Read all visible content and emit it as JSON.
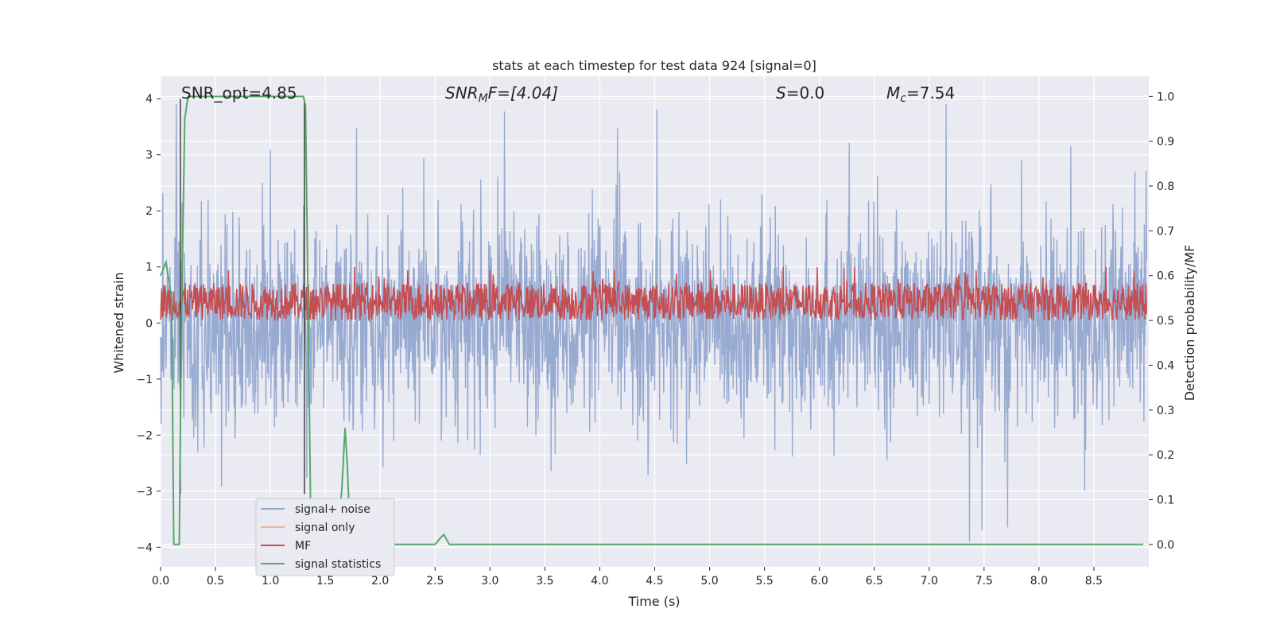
{
  "chart_data": {
    "type": "line",
    "title": "stats at each timestep for test data 924 [signal=0]",
    "xlabel": "Time (s)",
    "ylabel": "Whitened strain",
    "ylabel_right": "Detection probability/MF",
    "xlim": [
      0,
      9.0
    ],
    "ylim": [
      -4.35,
      4.4
    ],
    "ylim_right": [
      -0.05,
      1.045
    ],
    "x_ticks": [
      0.0,
      0.5,
      1.0,
      1.5,
      2.0,
      2.5,
      3.0,
      3.5,
      4.0,
      4.5,
      5.0,
      5.5,
      6.0,
      6.5,
      7.0,
      7.5,
      8.0,
      8.5
    ],
    "x_tick_labels": [
      "0.0",
      "0.5",
      "1.0",
      "1.5",
      "2.0",
      "2.5",
      "3.0",
      "3.5",
      "4.0",
      "4.5",
      "5.0",
      "5.5",
      "6.0",
      "6.5",
      "7.0",
      "7.5",
      "8.0",
      "8.5"
    ],
    "y_ticks": [
      -4,
      -3,
      -2,
      -1,
      0,
      1,
      2,
      3,
      4
    ],
    "y_tick_labels": [
      "−4",
      "−3",
      "−2",
      "−1",
      "0",
      "1",
      "2",
      "3",
      "4"
    ],
    "y_right_ticks": [
      0.0,
      0.1,
      0.2,
      0.3,
      0.4,
      0.5,
      0.6,
      0.7,
      0.8,
      0.9,
      1.0
    ],
    "y_right_tick_labels": [
      "0.0",
      "0.1",
      "0.2",
      "0.3",
      "0.4",
      "0.5",
      "0.6",
      "0.7",
      "0.8",
      "0.9",
      "1.0"
    ],
    "grid": true,
    "legend_position": "lower-left",
    "annotations": {
      "snr_opt": "SNR_opt=4.85",
      "snr_mf_prefix": "SNR",
      "snr_mf_sub": "M",
      "snr_mf_suffix": "F=[4.04]",
      "s_var": "S",
      "s_value": "=0.0",
      "mc_var": "M",
      "mc_sub": "c",
      "mc_value": "=7.54"
    },
    "vertical_lines": [
      0.18,
      1.31
    ],
    "series": [
      {
        "name": "signal+ noise",
        "axis": "left",
        "color": "#92a6cf",
        "amplitude_typical": 1.6,
        "amplitude_max": 3.9
      },
      {
        "name": "signal only",
        "axis": "left",
        "color": "#eeb39f"
      },
      {
        "name": "MF",
        "axis": "right",
        "color": "#c44e52",
        "band": [
          0.5,
          0.62
        ]
      },
      {
        "name": "signal statistics",
        "axis": "right",
        "color": "#55a868",
        "x": [
          0.0,
          0.05,
          0.1,
          0.12,
          0.17,
          0.19,
          0.22,
          0.25,
          1.3,
          1.32,
          1.35,
          1.37,
          1.6,
          1.65,
          1.68,
          1.7,
          1.73,
          1.78,
          2.5,
          2.55,
          2.58,
          2.63,
          8.95
        ],
        "values": [
          0.6,
          0.63,
          0.55,
          0.0,
          0.0,
          0.5,
          0.95,
          1.0,
          1.0,
          0.98,
          0.4,
          0.0,
          0.0,
          0.12,
          0.26,
          0.18,
          0.0,
          0.0,
          0.0,
          0.015,
          0.022,
          0.0,
          0.0
        ]
      }
    ]
  }
}
